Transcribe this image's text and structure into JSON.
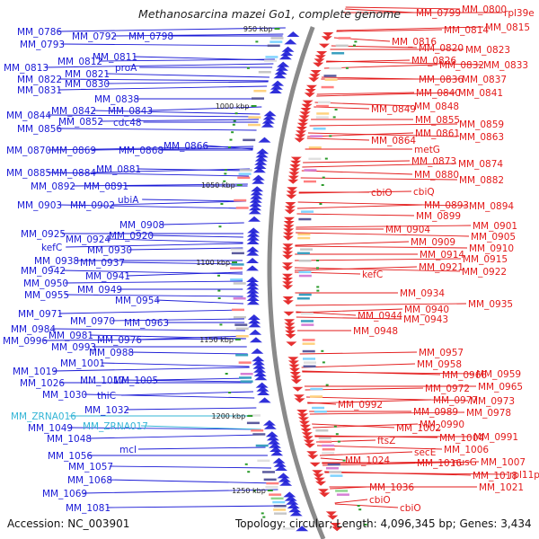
{
  "title": "Methanosarcina mazei Go1, complete genome",
  "footer": {
    "accession": "Accession: NC_003901",
    "summary": "Topology: circular; Length: 4,096,345 bp; Genes: 3,434"
  },
  "colors": {
    "background": "#ffffff",
    "forward": "#1a1ad6",
    "reverse": "#e31a1a",
    "rna": "#33b5d6",
    "backbone": "#8a8a8a",
    "marker": "#2c9b2c"
  },
  "ticks": [
    {
      "label": "950 kbp"
    },
    {
      "label": "1000 kbp"
    },
    {
      "label": "1050 kbp"
    },
    {
      "label": "1100 kbp"
    },
    {
      "label": "1150 kbp"
    },
    {
      "label": "1200 kbp"
    },
    {
      "label": "1250 kbp"
    }
  ],
  "left_labels": [
    {
      "text": "MM_0786",
      "type": "forward"
    },
    {
      "text": "MM_0792",
      "type": "forward"
    },
    {
      "text": "MM_0798",
      "type": "forward"
    },
    {
      "text": "MM_0793",
      "type": "forward"
    },
    {
      "text": "MM_0811",
      "type": "forward"
    },
    {
      "text": "MM_0813",
      "type": "forward"
    },
    {
      "text": "MM_0812",
      "type": "forward"
    },
    {
      "text": "proA",
      "type": "forward"
    },
    {
      "text": "MM_0822",
      "type": "forward"
    },
    {
      "text": "MM_0821",
      "type": "forward"
    },
    {
      "text": "MM_0831",
      "type": "forward"
    },
    {
      "text": "MM_0830",
      "type": "forward"
    },
    {
      "text": "MM_0838",
      "type": "forward"
    },
    {
      "text": "MM_0844",
      "type": "forward"
    },
    {
      "text": "MM_0842",
      "type": "forward"
    },
    {
      "text": "MM_0843",
      "type": "forward"
    },
    {
      "text": "MM_0852",
      "type": "forward"
    },
    {
      "text": "cdc48",
      "type": "forward"
    },
    {
      "text": "MM_0856",
      "type": "forward"
    },
    {
      "text": "MM_0866",
      "type": "forward"
    },
    {
      "text": "MM_0870",
      "type": "forward"
    },
    {
      "text": "MM_0869",
      "type": "forward"
    },
    {
      "text": "MM_0868",
      "type": "forward"
    },
    {
      "text": "MM_0881",
      "type": "forward"
    },
    {
      "text": "MM_0885",
      "type": "forward"
    },
    {
      "text": "MM_0884",
      "type": "forward"
    },
    {
      "text": "MM_0892",
      "type": "forward"
    },
    {
      "text": "MM_0891",
      "type": "forward"
    },
    {
      "text": "ubiA",
      "type": "forward"
    },
    {
      "text": "MM_0903",
      "type": "forward"
    },
    {
      "text": "MM_0902",
      "type": "forward"
    },
    {
      "text": "MM_0908",
      "type": "forward"
    },
    {
      "text": "MM_0925",
      "type": "forward"
    },
    {
      "text": "MM_0920",
      "type": "forward"
    },
    {
      "text": "MM_0924",
      "type": "forward"
    },
    {
      "text": "kefC",
      "type": "forward"
    },
    {
      "text": "MM_0930",
      "type": "forward"
    },
    {
      "text": "MM_0938",
      "type": "forward"
    },
    {
      "text": "MM_0937",
      "type": "forward"
    },
    {
      "text": "MM_0942",
      "type": "forward"
    },
    {
      "text": "MM_0941",
      "type": "forward"
    },
    {
      "text": "MM_0950",
      "type": "forward"
    },
    {
      "text": "MM_0949",
      "type": "forward"
    },
    {
      "text": "MM_0955",
      "type": "forward"
    },
    {
      "text": "MM_0954",
      "type": "forward"
    },
    {
      "text": "MM_0971",
      "type": "forward"
    },
    {
      "text": "MM_0970",
      "type": "forward"
    },
    {
      "text": "MM_0963",
      "type": "forward"
    },
    {
      "text": "MM_0984",
      "type": "forward"
    },
    {
      "text": "MM_0981",
      "type": "forward"
    },
    {
      "text": "MM_0976",
      "type": "forward"
    },
    {
      "text": "MM_0996",
      "type": "forward"
    },
    {
      "text": "MM_0993",
      "type": "forward"
    },
    {
      "text": "MM_0988",
      "type": "forward"
    },
    {
      "text": "MM_1001",
      "type": "forward"
    },
    {
      "text": "MM_1019",
      "type": "forward"
    },
    {
      "text": "MM_1005",
      "type": "forward"
    },
    {
      "text": "MM_1026",
      "type": "forward"
    },
    {
      "text": "MM_1017",
      "type": "forward"
    },
    {
      "text": "MM_1030",
      "type": "forward"
    },
    {
      "text": "thiC",
      "type": "forward"
    },
    {
      "text": "MM_1032",
      "type": "forward"
    },
    {
      "text": "MM_ZRNA016",
      "type": "rna"
    },
    {
      "text": "MM_1049",
      "type": "forward"
    },
    {
      "text": "MM_ZRNA017",
      "type": "rna"
    },
    {
      "text": "MM_1048",
      "type": "forward"
    },
    {
      "text": "mcl",
      "type": "forward"
    },
    {
      "text": "MM_1056",
      "type": "forward"
    },
    {
      "text": "MM_1057",
      "type": "forward"
    },
    {
      "text": "MM_1068",
      "type": "forward"
    },
    {
      "text": "MM_1069",
      "type": "forward"
    },
    {
      "text": "MM_1081",
      "type": "forward"
    }
  ],
  "right_labels": [
    {
      "text": "MM_0799",
      "type": "reverse"
    },
    {
      "text": "MM_0800",
      "type": "reverse"
    },
    {
      "text": "rpl39e",
      "type": "reverse"
    },
    {
      "text": "MM_0814",
      "type": "reverse"
    },
    {
      "text": "MM_0815",
      "type": "reverse"
    },
    {
      "text": "MM_0816",
      "type": "reverse"
    },
    {
      "text": "MM_0820",
      "type": "reverse"
    },
    {
      "text": "MM_0823",
      "type": "reverse"
    },
    {
      "text": "MM_0826",
      "type": "reverse"
    },
    {
      "text": "MM_0832",
      "type": "reverse"
    },
    {
      "text": "MM_0833",
      "type": "reverse"
    },
    {
      "text": "MM_0836",
      "type": "reverse"
    },
    {
      "text": "MM_0837",
      "type": "reverse"
    },
    {
      "text": "MM_0840",
      "type": "reverse"
    },
    {
      "text": "MM_0841",
      "type": "reverse"
    },
    {
      "text": "MM_0848",
      "type": "reverse"
    },
    {
      "text": "MM_0849",
      "type": "reverse"
    },
    {
      "text": "MM_0855",
      "type": "reverse"
    },
    {
      "text": "MM_0859",
      "type": "reverse"
    },
    {
      "text": "MM_0861",
      "type": "reverse"
    },
    {
      "text": "MM_0863",
      "type": "reverse"
    },
    {
      "text": "MM_0864",
      "type": "reverse"
    },
    {
      "text": "metG",
      "type": "reverse"
    },
    {
      "text": "MM_0873",
      "type": "reverse"
    },
    {
      "text": "MM_0874",
      "type": "reverse"
    },
    {
      "text": "MM_0880",
      "type": "reverse"
    },
    {
      "text": "MM_0882",
      "type": "reverse"
    },
    {
      "text": "cbiO",
      "type": "reverse"
    },
    {
      "text": "cbiQ",
      "type": "reverse"
    },
    {
      "text": "MM_0893",
      "type": "reverse"
    },
    {
      "text": "MM_0894",
      "type": "reverse"
    },
    {
      "text": "MM_0899",
      "type": "reverse"
    },
    {
      "text": "MM_0904",
      "type": "reverse"
    },
    {
      "text": "MM_0901",
      "type": "reverse"
    },
    {
      "text": "MM_0909",
      "type": "reverse"
    },
    {
      "text": "MM_0905",
      "type": "reverse"
    },
    {
      "text": "MM_0910",
      "type": "reverse"
    },
    {
      "text": "MM_0914",
      "type": "reverse"
    },
    {
      "text": "MM_0915",
      "type": "reverse"
    },
    {
      "text": "MM_0921",
      "type": "reverse"
    },
    {
      "text": "MM_0922",
      "type": "reverse"
    },
    {
      "text": "kefC",
      "type": "reverse"
    },
    {
      "text": "MM_0934",
      "type": "reverse"
    },
    {
      "text": "MM_0935",
      "type": "reverse"
    },
    {
      "text": "MM_0940",
      "type": "reverse"
    },
    {
      "text": "MM_0944",
      "type": "reverse"
    },
    {
      "text": "MM_0943",
      "type": "reverse"
    },
    {
      "text": "MM_0948",
      "type": "reverse"
    },
    {
      "text": "MM_0957",
      "type": "reverse"
    },
    {
      "text": "MM_0958",
      "type": "reverse"
    },
    {
      "text": "MM_0966",
      "type": "reverse"
    },
    {
      "text": "MM_0959",
      "type": "reverse"
    },
    {
      "text": "MM_0965",
      "type": "reverse"
    },
    {
      "text": "MM_0972",
      "type": "reverse"
    },
    {
      "text": "MM_0977",
      "type": "reverse"
    },
    {
      "text": "MM_0973",
      "type": "reverse"
    },
    {
      "text": "MM_0992",
      "type": "reverse"
    },
    {
      "text": "MM_0989",
      "type": "reverse"
    },
    {
      "text": "MM_0978",
      "type": "reverse"
    },
    {
      "text": "MM_0990",
      "type": "reverse"
    },
    {
      "text": "MM_1002",
      "type": "reverse"
    },
    {
      "text": "MM_1004",
      "type": "reverse"
    },
    {
      "text": "MM_0991",
      "type": "reverse"
    },
    {
      "text": "ftsZ",
      "type": "reverse"
    },
    {
      "text": "secE",
      "type": "reverse"
    },
    {
      "text": "MM_1006",
      "type": "reverse"
    },
    {
      "text": "MM_1024",
      "type": "reverse"
    },
    {
      "text": "MM_1016",
      "type": "reverse"
    },
    {
      "text": "nusG",
      "type": "reverse"
    },
    {
      "text": "MM_1007",
      "type": "reverse"
    },
    {
      "text": "MM_1018",
      "type": "reverse"
    },
    {
      "text": "rpl11p",
      "type": "reverse"
    },
    {
      "text": "MM_1021",
      "type": "reverse"
    },
    {
      "text": "MM_1036",
      "type": "reverse"
    },
    {
      "text": "cbiO",
      "type": "reverse"
    },
    {
      "text": "cbiO",
      "type": "reverse"
    }
  ]
}
